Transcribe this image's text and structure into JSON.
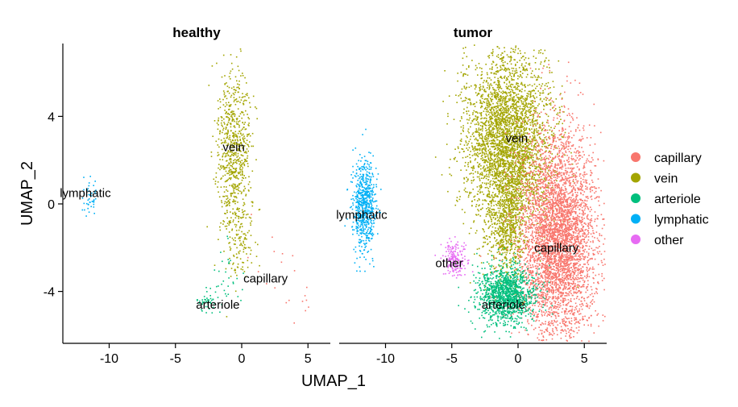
{
  "chart_data": {
    "type": "scatter",
    "x_label": "UMAP_1",
    "y_label": "UMAP_2",
    "xlim": [
      -13.5,
      6.5
    ],
    "ylim": [
      -6.3,
      7.5
    ],
    "x_ticks": [
      -10,
      -5,
      0,
      5
    ],
    "y_ticks": [
      -4,
      0,
      4
    ],
    "legend_position": "right",
    "legend": [
      {
        "name": "capillary",
        "color": "#F8766D"
      },
      {
        "name": "vein",
        "color": "#A3A500"
      },
      {
        "name": "arteriole",
        "color": "#00BF7D"
      },
      {
        "name": "lymphatic",
        "color": "#00B0F6"
      },
      {
        "name": "other",
        "color": "#E76BF3"
      }
    ],
    "panels": [
      {
        "title": "healthy",
        "labels": [
          {
            "text": "vein",
            "x": -0.6,
            "y": 2.6
          },
          {
            "text": "lymphatic",
            "x": -11.8,
            "y": 0.5
          },
          {
            "text": "capillary",
            "x": 1.8,
            "y": -3.4
          },
          {
            "text": "arteriole",
            "x": -1.8,
            "y": -4.6
          }
        ],
        "clusters": [
          {
            "type": "vein",
            "n": 750,
            "cx": -0.6,
            "cy": 2.2,
            "sx": 0.65,
            "sy": 2.0
          },
          {
            "type": "vein",
            "n": 90,
            "cx": -0.1,
            "cy": -1.8,
            "sx": 0.5,
            "sy": 0.8
          },
          {
            "type": "lymphatic",
            "n": 45,
            "cx": -11.5,
            "cy": 0.4,
            "sx": 0.3,
            "sy": 0.55
          },
          {
            "type": "arteriole",
            "n": 40,
            "cx": -2.6,
            "cy": -4.5,
            "sx": 0.5,
            "sy": 0.3
          },
          {
            "type": "arteriole",
            "n": 30,
            "cx": -0.9,
            "cy": -3.4,
            "sx": 0.55,
            "sy": 0.9
          },
          {
            "type": "capillary",
            "n": 12,
            "cx": 2.8,
            "cy": -3.3,
            "sx": 1.2,
            "sy": 1.2
          },
          {
            "type": "capillary",
            "n": 8,
            "cx": 4.6,
            "cy": -4.4,
            "sx": 0.5,
            "sy": 0.4
          }
        ]
      },
      {
        "title": "tumor",
        "labels": [
          {
            "text": "vein",
            "x": -0.1,
            "y": 3.0
          },
          {
            "text": "lymphatic",
            "x": -11.8,
            "y": -0.5
          },
          {
            "text": "capillary",
            "x": 2.9,
            "y": -2.0
          },
          {
            "text": "other",
            "x": -5.2,
            "y": -2.7
          },
          {
            "text": "arteriole",
            "x": -1.1,
            "y": -4.6
          }
        ],
        "clusters": [
          {
            "type": "vein",
            "n": 3600,
            "cx": -0.8,
            "cy": 2.8,
            "sx": 1.6,
            "sy": 2.1
          },
          {
            "type": "vein",
            "n": 600,
            "cx": -0.8,
            "cy": -1.0,
            "sx": 0.7,
            "sy": 1.3
          },
          {
            "type": "capillary",
            "n": 4200,
            "cx": 3.0,
            "cy": -1.6,
            "sx": 1.45,
            "sy": 2.4
          },
          {
            "type": "arteriole",
            "n": 1300,
            "cx": -0.9,
            "cy": -4.2,
            "sx": 1.1,
            "sy": 0.65
          },
          {
            "type": "lymphatic",
            "n": 650,
            "cx": -11.6,
            "cy": -0.1,
            "sx": 0.45,
            "sy": 1.0
          },
          {
            "type": "other",
            "n": 170,
            "cx": -4.8,
            "cy": -2.6,
            "sx": 0.45,
            "sy": 0.4
          }
        ]
      }
    ]
  }
}
